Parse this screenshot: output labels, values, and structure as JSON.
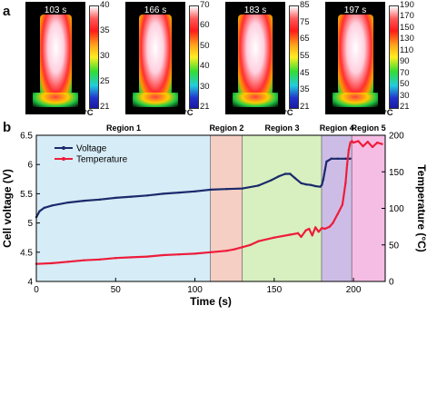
{
  "panel_a": {
    "label": "a",
    "frames": [
      {
        "time": "103 s",
        "scale_ticks": [
          "40",
          "35",
          "30",
          "25",
          "21"
        ],
        "unit": "°C",
        "hot": 0.75
      },
      {
        "time": "166 s",
        "scale_ticks": [
          "70",
          "60",
          "50",
          "40",
          "30",
          "21"
        ],
        "unit": "°C",
        "hot": 0.82
      },
      {
        "time": "183 s",
        "scale_ticks": [
          "85",
          "75",
          "65",
          "55",
          "45",
          "35",
          "21"
        ],
        "unit": "°C",
        "hot": 0.88
      },
      {
        "time": "197 s",
        "scale_ticks": [
          "190",
          "170",
          "150",
          "130",
          "110",
          "90",
          "70",
          "50",
          "30",
          "21"
        ],
        "unit": "°C",
        "hot": 0.95
      }
    ]
  },
  "panel_b": {
    "label": "b"
  },
  "chart_data": {
    "type": "line",
    "xlabel": "Time (s)",
    "ylabel": "Cell voltage (V)",
    "y2label": "Temperature (°C)",
    "xlim": [
      0,
      220
    ],
    "ylim": [
      4,
      6.5
    ],
    "y2lim": [
      0,
      200
    ],
    "xticks": [
      "0",
      "50",
      "100",
      "150",
      "200"
    ],
    "yticks": [
      "4",
      "4.5",
      "5",
      "5.5",
      "6",
      "6.5"
    ],
    "y2ticks": [
      "0",
      "50",
      "100",
      "150",
      "200"
    ],
    "legend_position": "top-left",
    "regions": [
      {
        "name": "Region 1",
        "x0": 0,
        "x1": 110,
        "color": "#d6ecf6"
      },
      {
        "name": "Region 2",
        "x0": 110,
        "x1": 130,
        "color": "#f5cfc4"
      },
      {
        "name": "Region 3",
        "x0": 130,
        "x1": 180,
        "color": "#d8efc0"
      },
      {
        "name": "Region 4",
        "x0": 180,
        "x1": 199,
        "color": "#cdbde6"
      },
      {
        "name": "Region 5",
        "x0": 199,
        "x1": 220,
        "color": "#f6bde4"
      }
    ],
    "series": [
      {
        "name": "Voltage",
        "axis": "left",
        "color": "#1b2a6b",
        "x": [
          0,
          2,
          5,
          10,
          20,
          30,
          40,
          50,
          60,
          70,
          80,
          90,
          100,
          110,
          120,
          130,
          140,
          148,
          153,
          157,
          160,
          163,
          167,
          170,
          173,
          176,
          179,
          180,
          181,
          182,
          183,
          186,
          190,
          195,
          198
        ],
        "y": [
          5.1,
          5.2,
          5.26,
          5.3,
          5.35,
          5.38,
          5.4,
          5.43,
          5.45,
          5.47,
          5.5,
          5.52,
          5.54,
          5.57,
          5.58,
          5.59,
          5.64,
          5.73,
          5.8,
          5.84,
          5.84,
          5.77,
          5.68,
          5.66,
          5.65,
          5.63,
          5.62,
          5.65,
          5.75,
          5.9,
          6.05,
          6.1,
          6.1,
          6.1,
          6.1
        ]
      },
      {
        "name": "Temperature",
        "axis": "right",
        "color": "#ee1c3a",
        "x": [
          0,
          10,
          20,
          30,
          40,
          50,
          60,
          70,
          80,
          90,
          100,
          110,
          120,
          125,
          130,
          135,
          140,
          150,
          160,
          165,
          167,
          170,
          172,
          174,
          176,
          178,
          180,
          182,
          185,
          187,
          190,
          193,
          195,
          196,
          197,
          198,
          199,
          200,
          203,
          206,
          209,
          212,
          215,
          218
        ],
        "y": [
          24,
          25,
          27,
          29,
          30,
          32,
          33,
          34,
          36,
          37,
          38,
          40,
          42,
          44,
          47,
          50,
          55,
          60,
          64,
          66,
          61,
          70,
          72,
          63,
          74,
          68,
          73,
          72,
          75,
          80,
          92,
          105,
          135,
          160,
          180,
          190,
          192,
          190,
          192,
          185,
          191,
          184,
          190,
          188
        ]
      }
    ]
  }
}
